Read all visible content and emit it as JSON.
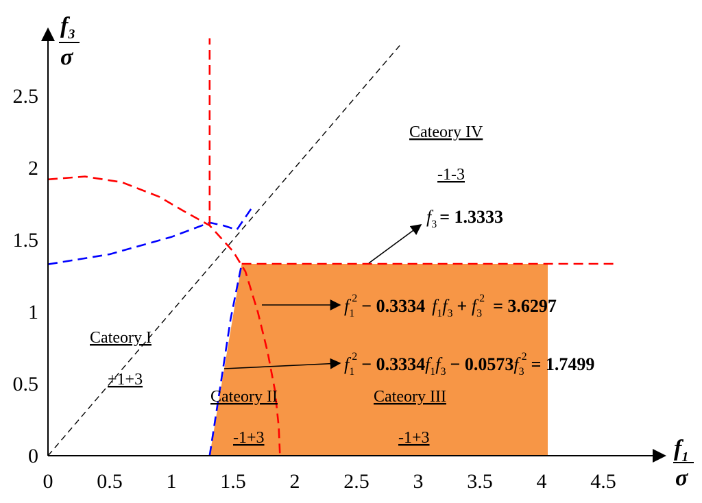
{
  "chart_data": {
    "type": "area",
    "x_axis": {
      "symbol_num": "f1",
      "symbol_den": "σ",
      "range": [
        0,
        5
      ],
      "ticks": [
        "0",
        "0.5",
        "1",
        "1.5",
        "2",
        "2.5",
        "3",
        "3.5",
        "4",
        "4.5"
      ]
    },
    "y_axis": {
      "symbol_num": "f3",
      "symbol_den": "σ",
      "range": [
        0,
        3
      ],
      "ticks": [
        "0",
        "0.5",
        "1",
        "1.5",
        "2",
        "2.5"
      ]
    },
    "grid": false,
    "shaded_region": {
      "color": "#f79646",
      "polygon": [
        [
          1.31,
          0
        ],
        [
          1.57,
          1.3333
        ],
        [
          4.05,
          1.3333
        ],
        [
          4.05,
          0
        ]
      ]
    },
    "curves": [
      {
        "name": "ellipse_f1f3",
        "color": "#ff0000",
        "style": "dashed",
        "points": [
          [
            0,
            1.92
          ],
          [
            0.3,
            1.94
          ],
          [
            0.6,
            1.9
          ],
          [
            0.9,
            1.8
          ],
          [
            1.1,
            1.7
          ],
          [
            1.31,
            1.6
          ],
          [
            1.5,
            1.42
          ],
          [
            1.6,
            1.28
          ],
          [
            1.7,
            1.0
          ],
          [
            1.78,
            0.72
          ],
          [
            1.84,
            0.45
          ],
          [
            1.87,
            0.2
          ],
          [
            1.88,
            0
          ]
        ]
      },
      {
        "name": "blue_boundary_upper",
        "color": "#0000ff",
        "style": "dashed",
        "points": [
          [
            0,
            1.33
          ],
          [
            0.5,
            1.4
          ],
          [
            1.0,
            1.52
          ],
          [
            1.31,
            1.62
          ],
          [
            1.42,
            1.6
          ],
          [
            1.53,
            1.57
          ],
          [
            1.65,
            1.72
          ]
        ]
      },
      {
        "name": "blue_boundary_lower",
        "color": "#0000ff",
        "style": "dashed",
        "points": [
          [
            1.31,
            0
          ],
          [
            1.4,
            0.5
          ],
          [
            1.48,
            0.95
          ],
          [
            1.57,
            1.3333
          ]
        ]
      },
      {
        "name": "vertical_boundary",
        "color": "#ff0000",
        "style": "dashed",
        "points": [
          [
            1.31,
            1.6
          ],
          [
            1.31,
            2.9
          ]
        ]
      },
      {
        "name": "f3_equals_1.3333",
        "color": "#ff0000",
        "style": "dashed",
        "points": [
          [
            1.57,
            1.3333
          ],
          [
            4.6,
            1.3333
          ]
        ]
      },
      {
        "name": "diagonal_f1_equals_f3",
        "color": "#000000",
        "style": "dashed",
        "points": [
          [
            0,
            0
          ],
          [
            2.85,
            2.85
          ]
        ]
      }
    ],
    "annotations": {
      "cat4_title": "Cateory IV",
      "cat4_sign": "-1-3",
      "cat1_title": "Cateory I",
      "cat1_sign": "+1+3",
      "cat2_title": "Cateory II",
      "cat2_sign": "-1+3",
      "cat3_title": "Cateory III",
      "cat3_sign": "-1+3",
      "eq_f3_value": "= 1.3333",
      "eq1_coef": "0.3334",
      "eq1_rhs": "3.6297",
      "eq2_coef1": "0.3334",
      "eq2_coef2": "0.0573",
      "eq2_rhs": "1.7499"
    }
  }
}
